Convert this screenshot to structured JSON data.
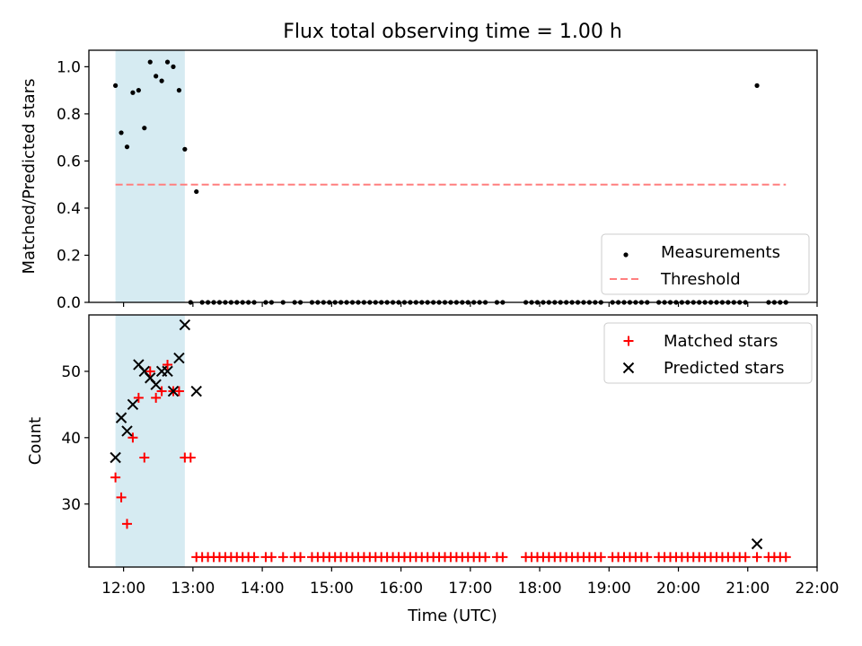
{
  "chart_data": [
    {
      "type": "scatter",
      "title": "Flux total observing time = 1.00 h",
      "ylabel": "Matched/Predicted stars",
      "xlabel": "",
      "xlim": [
        "11:30",
        "22:00"
      ],
      "ylim": [
        0.0,
        1.07
      ],
      "yticks": [
        "0.0",
        "0.2",
        "0.4",
        "0.6",
        "0.8",
        "1.0"
      ],
      "xticks": [
        "12:00",
        "13:00",
        "14:00",
        "15:00",
        "16:00",
        "17:00",
        "18:00",
        "19:00",
        "20:00",
        "21:00",
        "22:00"
      ],
      "shaded_span": [
        "11:53",
        "12:53"
      ],
      "legend_position": "lower right",
      "series": [
        {
          "name": "Measurements",
          "marker": "dot",
          "color": "#000000",
          "points": [
            [
              "11:53",
              0.92
            ],
            [
              "11:58",
              0.72
            ],
            [
              "12:03",
              0.66
            ],
            [
              "12:08",
              0.89
            ],
            [
              "12:13",
              0.9
            ],
            [
              "12:18",
              0.74
            ],
            [
              "12:23",
              1.02
            ],
            [
              "12:28",
              0.96
            ],
            [
              "12:33",
              0.94
            ],
            [
              "12:38",
              1.02
            ],
            [
              "12:43",
              1.0
            ],
            [
              "12:48",
              0.9
            ],
            [
              "12:53",
              0.65
            ],
            [
              "12:58",
              0.0
            ],
            [
              "13:03",
              0.47
            ],
            [
              "13:08",
              0.0
            ],
            [
              "13:13",
              0.0
            ],
            [
              "13:18",
              0.0
            ],
            [
              "13:23",
              0.0
            ],
            [
              "13:28",
              0.0
            ],
            [
              "13:33",
              0.0
            ],
            [
              "13:38",
              0.0
            ],
            [
              "13:43",
              0.0
            ],
            [
              "13:48",
              0.0
            ],
            [
              "13:53",
              0.0
            ],
            [
              "14:03",
              0.0
            ],
            [
              "14:08",
              0.0
            ],
            [
              "14:18",
              0.0
            ],
            [
              "14:28",
              0.0
            ],
            [
              "14:33",
              0.0
            ],
            [
              "14:43",
              0.0
            ],
            [
              "14:48",
              0.0
            ],
            [
              "14:53",
              0.0
            ],
            [
              "14:58",
              0.0
            ],
            [
              "15:03",
              0.0
            ],
            [
              "15:08",
              0.0
            ],
            [
              "15:13",
              0.0
            ],
            [
              "15:18",
              0.0
            ],
            [
              "15:23",
              0.0
            ],
            [
              "15:28",
              0.0
            ],
            [
              "15:33",
              0.0
            ],
            [
              "15:38",
              0.0
            ],
            [
              "15:43",
              0.0
            ],
            [
              "15:48",
              0.0
            ],
            [
              "15:53",
              0.0
            ],
            [
              "15:58",
              0.0
            ],
            [
              "16:03",
              0.0
            ],
            [
              "16:08",
              0.0
            ],
            [
              "16:13",
              0.0
            ],
            [
              "16:18",
              0.0
            ],
            [
              "16:23",
              0.0
            ],
            [
              "16:28",
              0.0
            ],
            [
              "16:33",
              0.0
            ],
            [
              "16:38",
              0.0
            ],
            [
              "16:43",
              0.0
            ],
            [
              "16:48",
              0.0
            ],
            [
              "16:53",
              0.0
            ],
            [
              "16:58",
              0.0
            ],
            [
              "17:03",
              0.0
            ],
            [
              "17:08",
              0.0
            ],
            [
              "17:13",
              0.0
            ],
            [
              "17:23",
              0.0
            ],
            [
              "17:28",
              0.0
            ],
            [
              "17:48",
              0.0
            ],
            [
              "17:53",
              0.0
            ],
            [
              "17:58",
              0.0
            ],
            [
              "18:03",
              0.0
            ],
            [
              "18:08",
              0.0
            ],
            [
              "18:13",
              0.0
            ],
            [
              "18:18",
              0.0
            ],
            [
              "18:23",
              0.0
            ],
            [
              "18:28",
              0.0
            ],
            [
              "18:33",
              0.0
            ],
            [
              "18:38",
              0.0
            ],
            [
              "18:43",
              0.0
            ],
            [
              "18:48",
              0.0
            ],
            [
              "18:53",
              0.0
            ],
            [
              "19:03",
              0.0
            ],
            [
              "19:08",
              0.0
            ],
            [
              "19:13",
              0.0
            ],
            [
              "19:18",
              0.0
            ],
            [
              "19:23",
              0.0
            ],
            [
              "19:28",
              0.0
            ],
            [
              "19:33",
              0.0
            ],
            [
              "19:43",
              0.0
            ],
            [
              "19:48",
              0.0
            ],
            [
              "19:53",
              0.0
            ],
            [
              "19:58",
              0.0
            ],
            [
              "20:03",
              0.0
            ],
            [
              "20:08",
              0.0
            ],
            [
              "20:13",
              0.0
            ],
            [
              "20:18",
              0.0
            ],
            [
              "20:23",
              0.0
            ],
            [
              "20:28",
              0.0
            ],
            [
              "20:33",
              0.0
            ],
            [
              "20:38",
              0.0
            ],
            [
              "20:43",
              0.0
            ],
            [
              "20:48",
              0.0
            ],
            [
              "20:53",
              0.0
            ],
            [
              "20:58",
              0.0
            ],
            [
              "21:08",
              0.92
            ],
            [
              "21:18",
              0.0
            ],
            [
              "21:23",
              0.0
            ],
            [
              "21:28",
              0.0
            ],
            [
              "21:33",
              0.0
            ]
          ]
        },
        {
          "name": "Threshold",
          "style": "dashed",
          "color": "#ff7f7f",
          "points": [
            [
              "11:53",
              0.5
            ],
            [
              "21:33",
              0.5
            ]
          ]
        }
      ]
    },
    {
      "type": "scatter",
      "title": "",
      "xlabel": "Time (UTC)",
      "ylabel": "Count",
      "xlim": [
        "11:30",
        "22:00"
      ],
      "ylim": [
        20.5,
        58.5
      ],
      "yticks": [
        "30",
        "40",
        "50"
      ],
      "xticks": [
        "12:00",
        "13:00",
        "14:00",
        "15:00",
        "16:00",
        "17:00",
        "18:00",
        "19:00",
        "20:00",
        "21:00",
        "22:00"
      ],
      "shaded_span": [
        "11:53",
        "12:53"
      ],
      "legend_position": "upper right",
      "series": [
        {
          "name": "Matched stars",
          "marker": "plus",
          "color": "#ff0000",
          "points": [
            [
              "11:53",
              34
            ],
            [
              "11:58",
              31
            ],
            [
              "12:03",
              27
            ],
            [
              "12:08",
              40
            ],
            [
              "12:13",
              46
            ],
            [
              "12:18",
              37
            ],
            [
              "12:23",
              50
            ],
            [
              "12:28",
              46
            ],
            [
              "12:33",
              47
            ],
            [
              "12:38",
              51
            ],
            [
              "12:43",
              47
            ],
            [
              "12:48",
              47
            ],
            [
              "12:53",
              37
            ],
            [
              "12:58",
              37
            ],
            [
              "13:03",
              22
            ],
            [
              "13:08",
              22
            ],
            [
              "13:13",
              22
            ],
            [
              "13:18",
              22
            ],
            [
              "13:23",
              22
            ],
            [
              "13:28",
              22
            ],
            [
              "13:33",
              22
            ],
            [
              "13:38",
              22
            ],
            [
              "13:43",
              22
            ],
            [
              "13:48",
              22
            ],
            [
              "13:53",
              22
            ],
            [
              "14:03",
              22
            ],
            [
              "14:08",
              22
            ],
            [
              "14:18",
              22
            ],
            [
              "14:28",
              22
            ],
            [
              "14:33",
              22
            ],
            [
              "14:43",
              22
            ],
            [
              "14:48",
              22
            ],
            [
              "14:53",
              22
            ],
            [
              "14:58",
              22
            ],
            [
              "15:03",
              22
            ],
            [
              "15:08",
              22
            ],
            [
              "15:13",
              22
            ],
            [
              "15:18",
              22
            ],
            [
              "15:23",
              22
            ],
            [
              "15:28",
              22
            ],
            [
              "15:33",
              22
            ],
            [
              "15:38",
              22
            ],
            [
              "15:43",
              22
            ],
            [
              "15:48",
              22
            ],
            [
              "15:53",
              22
            ],
            [
              "15:58",
              22
            ],
            [
              "16:03",
              22
            ],
            [
              "16:08",
              22
            ],
            [
              "16:13",
              22
            ],
            [
              "16:18",
              22
            ],
            [
              "16:23",
              22
            ],
            [
              "16:28",
              22
            ],
            [
              "16:33",
              22
            ],
            [
              "16:38",
              22
            ],
            [
              "16:43",
              22
            ],
            [
              "16:48",
              22
            ],
            [
              "16:53",
              22
            ],
            [
              "16:58",
              22
            ],
            [
              "17:03",
              22
            ],
            [
              "17:08",
              22
            ],
            [
              "17:13",
              22
            ],
            [
              "17:23",
              22
            ],
            [
              "17:28",
              22
            ],
            [
              "17:48",
              22
            ],
            [
              "17:53",
              22
            ],
            [
              "17:58",
              22
            ],
            [
              "18:03",
              22
            ],
            [
              "18:08",
              22
            ],
            [
              "18:13",
              22
            ],
            [
              "18:18",
              22
            ],
            [
              "18:23",
              22
            ],
            [
              "18:28",
              22
            ],
            [
              "18:33",
              22
            ],
            [
              "18:38",
              22
            ],
            [
              "18:43",
              22
            ],
            [
              "18:48",
              22
            ],
            [
              "18:53",
              22
            ],
            [
              "19:03",
              22
            ],
            [
              "19:08",
              22
            ],
            [
              "19:13",
              22
            ],
            [
              "19:18",
              22
            ],
            [
              "19:23",
              22
            ],
            [
              "19:28",
              22
            ],
            [
              "19:33",
              22
            ],
            [
              "19:43",
              22
            ],
            [
              "19:48",
              22
            ],
            [
              "19:53",
              22
            ],
            [
              "19:58",
              22
            ],
            [
              "20:03",
              22
            ],
            [
              "20:08",
              22
            ],
            [
              "20:13",
              22
            ],
            [
              "20:18",
              22
            ],
            [
              "20:23",
              22
            ],
            [
              "20:28",
              22
            ],
            [
              "20:33",
              22
            ],
            [
              "20:38",
              22
            ],
            [
              "20:43",
              22
            ],
            [
              "20:48",
              22
            ],
            [
              "20:53",
              22
            ],
            [
              "20:58",
              22
            ],
            [
              "21:08",
              22
            ],
            [
              "21:18",
              22
            ],
            [
              "21:23",
              22
            ],
            [
              "21:28",
              22
            ],
            [
              "21:33",
              22
            ]
          ]
        },
        {
          "name": "Predicted stars",
          "marker": "x",
          "color": "#000000",
          "points": [
            [
              "11:53",
              37
            ],
            [
              "11:58",
              43
            ],
            [
              "12:03",
              41
            ],
            [
              "12:08",
              45
            ],
            [
              "12:13",
              51
            ],
            [
              "12:18",
              50
            ],
            [
              "12:23",
              49
            ],
            [
              "12:28",
              48
            ],
            [
              "12:33",
              50
            ],
            [
              "12:38",
              50
            ],
            [
              "12:43",
              47
            ],
            [
              "12:48",
              52
            ],
            [
              "12:53",
              57
            ],
            [
              "13:03",
              47
            ],
            [
              "21:08",
              24
            ]
          ]
        }
      ]
    }
  ]
}
